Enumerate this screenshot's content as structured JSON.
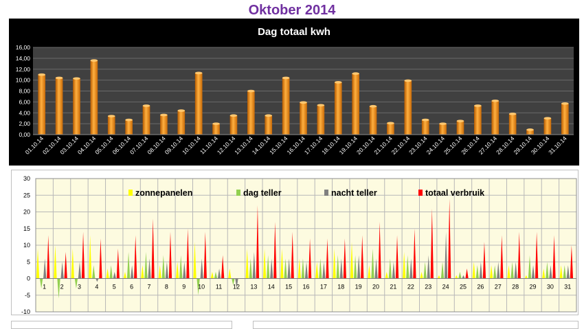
{
  "page": {
    "title": "Oktober 2014"
  },
  "colors": {
    "title": "#7030a0",
    "bar": "#f08c1c",
    "zonnepanelen": "#ffff00",
    "dag_teller": "#92d050",
    "nacht_teller": "#808080",
    "totaal_verbruik": "#ff0000",
    "plot_bg_chart2": "#fdfbe0",
    "plot_bg_chart1": "#404040"
  },
  "chart_data": [
    {
      "type": "bar",
      "title": "Dag totaal kwh",
      "categories": [
        "01.10.14",
        "02.10.14",
        "03.10.14",
        "04.10.14",
        "05.10.14",
        "06.10.14",
        "07.10.14",
        "08.10.14",
        "09.10.14",
        "10.10.14",
        "11.10.14",
        "12.10.14",
        "13.10.14",
        "14.10.14",
        "15.10.14",
        "16.10.14",
        "17.10.14",
        "18.10.14",
        "19.10.14",
        "20.10.14",
        "21.10.14",
        "22.10.14",
        "23.10.14",
        "24.10.14",
        "25.10.14",
        "26.10.14",
        "27.10.14",
        "28.10.14",
        "29.10.14",
        "30.10.14",
        "31.10.14"
      ],
      "values": [
        11.0,
        10.4,
        10.3,
        13.6,
        3.4,
        2.7,
        5.3,
        3.6,
        4.4,
        11.3,
        2.0,
        3.5,
        8.0,
        3.5,
        10.4,
        5.9,
        5.4,
        9.6,
        11.2,
        5.2,
        2.1,
        9.9,
        2.7,
        2.0,
        2.5,
        5.3,
        6.2,
        3.8,
        0.9,
        3.0,
        5.7
      ],
      "ylim": [
        0,
        16
      ],
      "yticks": [
        "0,00",
        "2,00",
        "4,00",
        "6,00",
        "8,00",
        "10,00",
        "12,00",
        "14,00",
        "16,00"
      ],
      "grid": true,
      "legend": "none"
    },
    {
      "type": "bar",
      "title": "",
      "categories": [
        "1",
        "2",
        "3",
        "4",
        "5",
        "6",
        "7",
        "8",
        "9",
        "10",
        "11",
        "12",
        "13",
        "14",
        "15",
        "16",
        "17",
        "18",
        "19",
        "20",
        "21",
        "22",
        "23",
        "24",
        "25",
        "26",
        "27",
        "28",
        "29",
        "30",
        "31"
      ],
      "ylim": [
        -10,
        30
      ],
      "yticks": [
        "-10",
        "-5",
        "0",
        "5",
        "10",
        "15",
        "20",
        "25",
        "30"
      ],
      "grid": true,
      "legend": "top",
      "series": [
        {
          "name": "zonnepanelen",
          "values": [
            9,
            10,
            9,
            13,
            3,
            2,
            4,
            4,
            5,
            11,
            2,
            3,
            9,
            9,
            9,
            6,
            5,
            9,
            11,
            4,
            2,
            8,
            2,
            1,
            1,
            5,
            4,
            4,
            1,
            3,
            4
          ]
        },
        {
          "name": "dag teller",
          "values": [
            -3,
            -6,
            -3,
            4,
            4,
            8,
            8,
            7,
            7,
            -5,
            2,
            -2,
            6,
            7,
            6,
            6,
            6,
            7,
            7,
            9,
            6,
            7,
            5,
            5,
            2,
            4,
            4,
            5,
            7,
            5,
            4
          ]
        },
        {
          "name": "nacht teller",
          "values": [
            6,
            5,
            5,
            -1,
            2,
            4,
            6,
            5,
            5,
            6,
            3,
            -3,
            8,
            6,
            6,
            5,
            5,
            6,
            7,
            6,
            5,
            6,
            7,
            14,
            1,
            5,
            5,
            5,
            4,
            4,
            4
          ]
        },
        {
          "name": "totaal verbruik",
          "values": [
            13,
            8,
            14,
            12,
            9,
            13,
            18,
            14,
            15,
            14,
            7,
            0,
            22,
            17,
            14,
            12,
            12,
            12,
            13,
            17,
            13,
            15,
            21,
            24,
            3,
            11,
            13,
            14,
            14,
            13,
            10
          ]
        }
      ]
    }
  ]
}
